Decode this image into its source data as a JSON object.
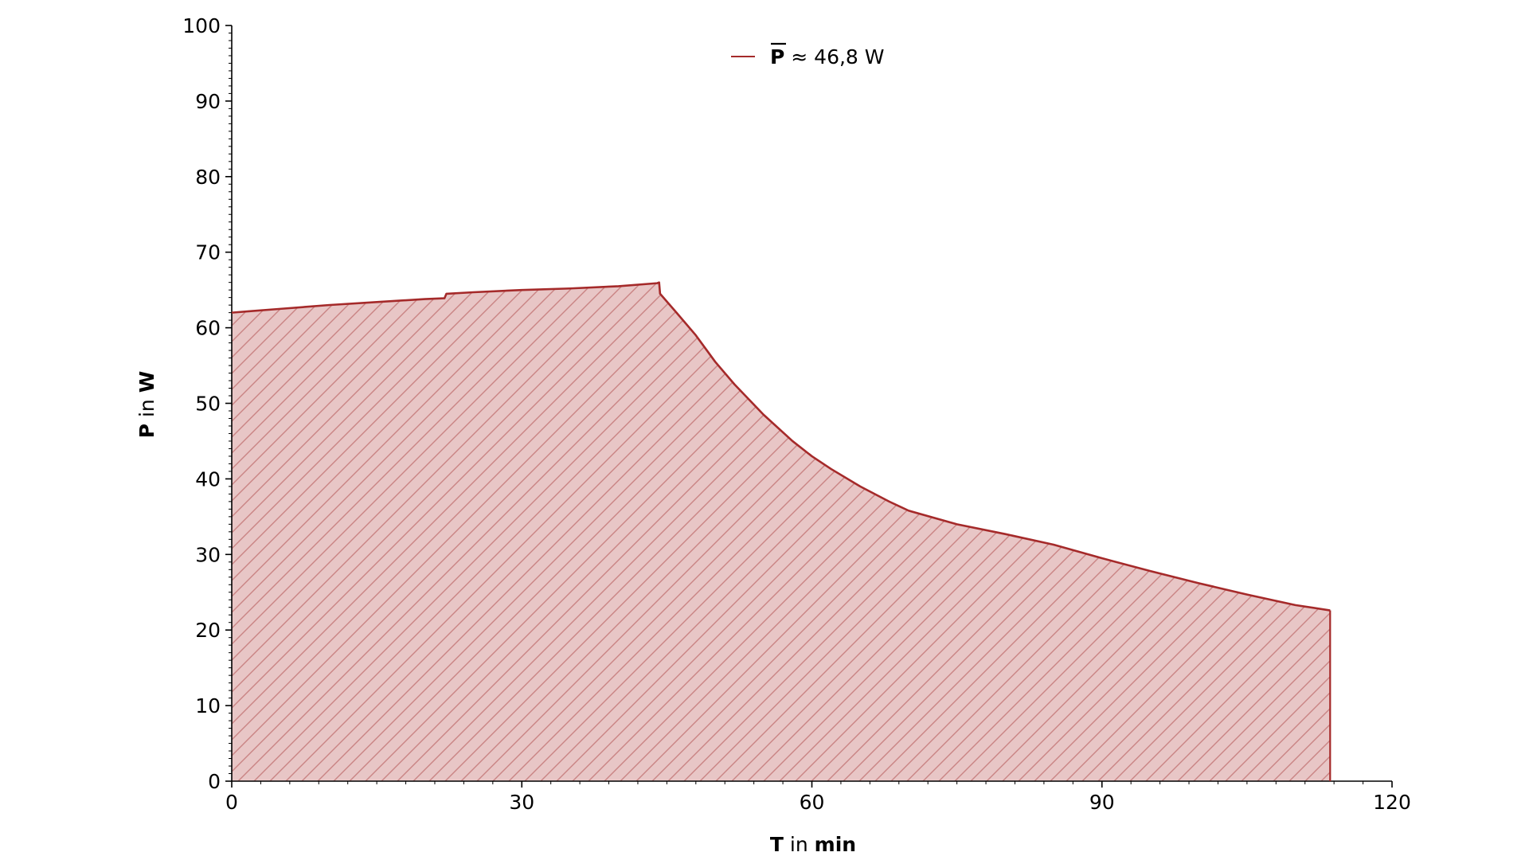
{
  "colors": {
    "series": "#a52a2a",
    "fill": "#e8c6c6",
    "hatch": "#c98484",
    "axis": "#000000"
  },
  "axes": {
    "x": {
      "var": "T",
      "joiner": " in ",
      "unit": "min"
    },
    "y": {
      "var": "P",
      "joiner": " in ",
      "unit": "W"
    }
  },
  "legend": {
    "symbol": "P",
    "rest": " ≈ 46,8 W",
    "placement": "top-center"
  },
  "chart_data": {
    "type": "area",
    "xlim": [
      0,
      120
    ],
    "ylim": [
      0,
      100
    ],
    "x_ticks": [
      "0",
      "30",
      "60",
      "90",
      "120"
    ],
    "y_ticks": [
      "0",
      "10",
      "20",
      "30",
      "40",
      "50",
      "60",
      "70",
      "80",
      "90",
      "100"
    ],
    "grid": false,
    "hatched_fill": true,
    "series": [
      {
        "name": "P̄ ≈ 46,8 W",
        "x": [
          0,
          2,
          5,
          10,
          15,
          20,
          22,
          22.2,
          25,
          30,
          35,
          40,
          44,
          44.2,
          44.3,
          46,
          48,
          50,
          52,
          55,
          58,
          60,
          62,
          65,
          68,
          70,
          75,
          80,
          85,
          90,
          95,
          100,
          105,
          110,
          113.6
        ],
        "y": [
          62,
          62.2,
          62.5,
          63,
          63.4,
          63.8,
          63.9,
          64.5,
          64.7,
          65,
          65.2,
          65.5,
          65.9,
          66,
          64.5,
          62,
          59,
          55.5,
          52.5,
          48.5,
          45,
          43,
          41.3,
          39,
          37,
          35.8,
          34,
          32.7,
          31.3,
          29.5,
          27.8,
          26.2,
          24.7,
          23.3,
          22.6
        ]
      }
    ]
  }
}
